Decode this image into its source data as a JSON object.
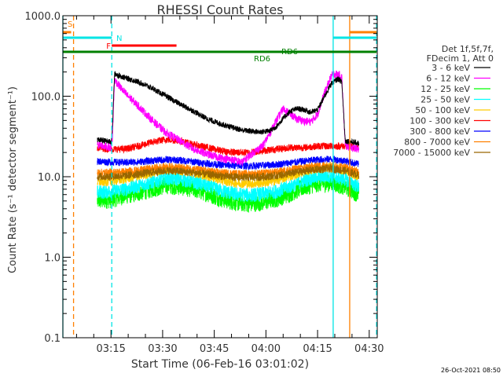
{
  "chart_data": {
    "type": "line",
    "title": "RHESSI Count Rates",
    "xlabel": "Start Time (06-Feb-16 03:01:02)",
    "ylabel": "Count Rate (s⁻¹ detector segment⁻¹)",
    "y_scale": "log",
    "ylim": [
      0.1,
      1000.0
    ],
    "y_ticks": [
      0.1,
      1.0,
      10.0,
      100.0,
      1000.0
    ],
    "y_tick_labels": [
      "0.1",
      "1.0",
      "10.0",
      "100.0",
      "1000.0"
    ],
    "x_units": "minutes since 03:01:02",
    "xlim": [
      0.0,
      88.0
    ],
    "x_ticks": [
      13.97,
      28.97,
      43.97,
      58.97,
      73.97,
      88.97
    ],
    "x_tick_labels": [
      "03:15",
      "03:30",
      "03:45",
      "04:00",
      "04:15",
      "04:30"
    ],
    "legend": {
      "header": [
        "Det 1f,5f,7f,",
        "FDecim 1, Att 0"
      ],
      "placement": "right"
    },
    "series": [
      {
        "name": "3 - 6 keV",
        "color": "#000000",
        "x": [
          10,
          12,
          14,
          14.4,
          15,
          18,
          22,
          26,
          30,
          34,
          38,
          42,
          46,
          50,
          52,
          54,
          57,
          60,
          62,
          64,
          66,
          68,
          70,
          72,
          74,
          76,
          78,
          79,
          80,
          81,
          82,
          84,
          86
        ],
        "values": [
          29,
          28,
          27,
          40,
          190,
          170,
          150,
          125,
          100,
          80,
          65,
          52,
          45,
          40,
          38,
          37,
          36,
          37,
          42,
          53,
          65,
          70,
          68,
          63,
          68,
          100,
          145,
          155,
          165,
          150,
          28,
          27,
          26
        ]
      },
      {
        "name": "6 - 12 keV",
        "color": "#ff00ff",
        "x": [
          10,
          12,
          14,
          14.4,
          15,
          18,
          22,
          26,
          30,
          34,
          38,
          42,
          46,
          50,
          52,
          54,
          56,
          58,
          60,
          62,
          64,
          66,
          68,
          70,
          72,
          74,
          76,
          78,
          79,
          80,
          81,
          82,
          84,
          86
        ],
        "values": [
          25,
          24,
          23,
          30,
          160,
          110,
          75,
          50,
          35,
          28,
          22,
          19,
          17,
          16,
          15,
          18,
          21,
          24,
          34,
          50,
          70,
          60,
          52,
          49,
          48,
          60,
          110,
          180,
          190,
          185,
          175,
          24,
          23,
          22
        ]
      },
      {
        "name": "12 - 25 keV",
        "color": "#00ff00",
        "x": [
          10,
          14,
          18,
          22,
          26,
          30,
          34,
          38,
          42,
          46,
          50,
          54,
          58,
          62,
          66,
          70,
          74,
          78,
          82,
          86
        ],
        "values": [
          5.0,
          5.2,
          5.8,
          6.3,
          7.0,
          7.8,
          7.5,
          7.0,
          6.2,
          5.3,
          4.8,
          4.6,
          4.8,
          5.3,
          6.2,
          7.4,
          8.2,
          8.3,
          7.5,
          6.0
        ]
      },
      {
        "name": "25 - 50 keV",
        "color": "#00ffff",
        "x": [
          10,
          14,
          18,
          22,
          26,
          30,
          34,
          38,
          42,
          46,
          50,
          54,
          58,
          62,
          66,
          70,
          74,
          78,
          82,
          86
        ],
        "values": [
          6.4,
          6.6,
          7.0,
          7.7,
          8.6,
          9.6,
          9.3,
          8.6,
          7.7,
          6.7,
          6.1,
          5.9,
          6.1,
          6.6,
          7.6,
          9.0,
          10.0,
          10.2,
          9.3,
          7.5
        ]
      },
      {
        "name": "50 - 100 keV",
        "color": "#ffcc00",
        "x": [
          10,
          14,
          18,
          22,
          26,
          30,
          34,
          38,
          42,
          46,
          50,
          54,
          58,
          62,
          66,
          70,
          74,
          78,
          82,
          86
        ],
        "values": [
          8.6,
          8.8,
          9.4,
          10.2,
          11.2,
          12.4,
          12.0,
          11.2,
          10.2,
          9.1,
          8.4,
          8.2,
          8.4,
          9.0,
          10.2,
          11.6,
          12.7,
          13.0,
          12.0,
          10.0
        ]
      },
      {
        "name": "100 - 300 keV",
        "color": "#ff0000",
        "x": [
          10,
          14,
          18,
          22,
          26,
          30,
          34,
          38,
          42,
          46,
          50,
          54,
          58,
          62,
          66,
          70,
          74,
          78,
          82,
          86
        ],
        "values": [
          23,
          22,
          22,
          24,
          27,
          29,
          28,
          25,
          23,
          21,
          20,
          20,
          21,
          22,
          23,
          23,
          24,
          24,
          24,
          23
        ]
      },
      {
        "name": "300 - 800 keV",
        "color": "#0000ff",
        "x": [
          10,
          14,
          18,
          22,
          26,
          30,
          34,
          38,
          42,
          46,
          50,
          54,
          58,
          62,
          66,
          70,
          74,
          78,
          82,
          86
        ],
        "values": [
          15.5,
          15.2,
          15.0,
          15.3,
          15.8,
          16.3,
          16.0,
          15.3,
          14.6,
          14.0,
          13.7,
          13.6,
          13.8,
          14.2,
          14.9,
          15.6,
          16.3,
          16.5,
          15.8,
          14.2
        ]
      },
      {
        "name": "800 - 7000 keV",
        "color": "#ff8000",
        "x": [
          10,
          14,
          18,
          22,
          26,
          30,
          34,
          38,
          42,
          46,
          50,
          54,
          58,
          62,
          66,
          70,
          74,
          78,
          82,
          86
        ],
        "values": [
          11.2,
          11.3,
          11.5,
          12.0,
          12.7,
          13.3,
          13.0,
          12.4,
          11.8,
          11.2,
          10.9,
          10.8,
          11.0,
          11.4,
          12.2,
          13.1,
          13.8,
          14.0,
          13.2,
          11.5
        ]
      },
      {
        "name": "7000 - 15000 keV",
        "color": "#996600",
        "x": [
          10,
          14,
          18,
          22,
          26,
          30,
          34,
          38,
          42,
          46,
          50,
          54,
          58,
          62,
          66,
          70,
          74,
          78,
          82,
          86
        ],
        "values": [
          10.0,
          10.1,
          10.3,
          10.8,
          11.4,
          11.9,
          11.7,
          11.2,
          10.7,
          10.2,
          9.9,
          9.8,
          10.0,
          10.3,
          11.0,
          11.8,
          12.4,
          12.6,
          11.9,
          10.4
        ]
      }
    ],
    "annotations": {
      "vertical_lines": [
        {
          "x": -0.3,
          "style": "solid",
          "color": "#00e5e5",
          "label": ""
        },
        {
          "x": 3.1,
          "style": "dashed",
          "color": "#ff8000",
          "label": ""
        },
        {
          "x": 14.2,
          "style": "dashed",
          "color": "#00e5e5",
          "label": ""
        },
        {
          "x": 78.5,
          "style": "solid",
          "color": "#00e5e5",
          "label": ""
        },
        {
          "x": 83.3,
          "style": "solid",
          "color": "#ff8000",
          "label": ""
        },
        {
          "x": 91.1,
          "style": "dashed",
          "color": "#00e5e5",
          "label": ""
        }
      ],
      "flag_bars": [
        {
          "label": "S",
          "color": "#ff8000",
          "x0": -0.3,
          "x1": 2.4,
          "level": 1
        },
        {
          "label": "",
          "color": "#ff8000",
          "x0": 83.3,
          "x1": 91.1,
          "level": 1
        },
        {
          "label": "N",
          "color": "#00e5e5",
          "x0": -0.3,
          "x1": 14.2,
          "level": 2
        },
        {
          "label": "",
          "color": "#00e5e5",
          "x0": 78.5,
          "x1": 91.1,
          "level": 2
        },
        {
          "label": "F",
          "color": "#ff0000",
          "x0": 14.2,
          "x1": 33.0,
          "level": 3
        },
        {
          "label": "RD6",
          "color": "#008000",
          "x0": -0.3,
          "x1": 91.1,
          "level": 4
        }
      ],
      "rd6_labels": [
        "RD6",
        "RD6"
      ]
    },
    "footer_date": "26-Oct-2021 08:50"
  }
}
